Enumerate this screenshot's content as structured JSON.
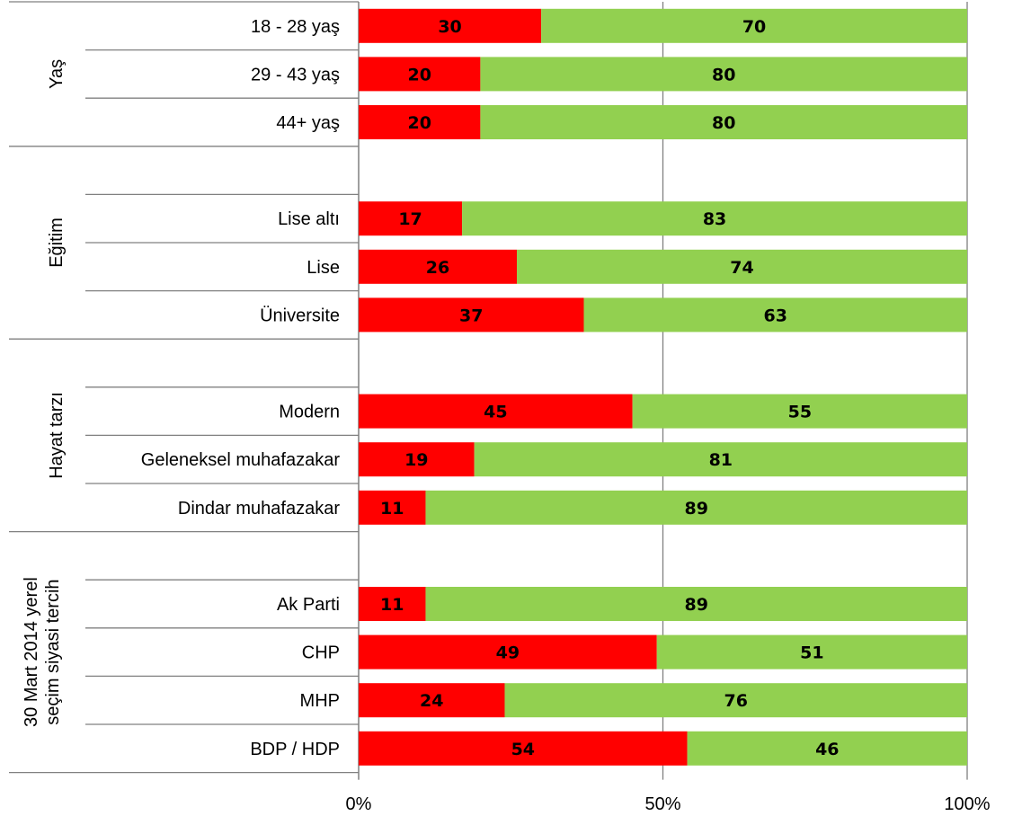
{
  "chart_data": {
    "type": "bar",
    "orientation": "horizontal",
    "stacked": true,
    "xlim": [
      0,
      100
    ],
    "ticks": [
      {
        "value": 0,
        "label": "0%"
      },
      {
        "value": 50,
        "label": "50%"
      },
      {
        "value": 100,
        "label": "100%"
      }
    ],
    "grid": true,
    "colors": {
      "series1": "#ff0000",
      "series2": "#92d050",
      "axis": "#808080",
      "grid": "#808080"
    },
    "groups": [
      {
        "label": "Yaş",
        "blank_slots": 0,
        "categories": [
          {
            "label": "18 - 28 yaş",
            "values": [
              30,
              70
            ]
          },
          {
            "label": "29 - 43 yaş",
            "values": [
              20,
              80
            ]
          },
          {
            "label": "44+ yaş",
            "values": [
              20,
              80
            ]
          }
        ]
      },
      {
        "label": "Eğitim",
        "blank_slots": 1,
        "categories": [
          {
            "label": "Lise altı",
            "values": [
              17,
              83
            ]
          },
          {
            "label": "Lise",
            "values": [
              26,
              74
            ]
          },
          {
            "label": "Üniversite",
            "values": [
              37,
              63
            ]
          }
        ]
      },
      {
        "label": "Hayat tarzı",
        "blank_slots": 1,
        "categories": [
          {
            "label": "Modern",
            "values": [
              45,
              55
            ]
          },
          {
            "label": "Geleneksel muhafazakar",
            "values": [
              19,
              81
            ]
          },
          {
            "label": "Dindar muhafazakar",
            "values": [
              11,
              89
            ]
          }
        ]
      },
      {
        "label_lines": [
          "30 Mart 2014 yerel",
          "seçim siyasi tercih"
        ],
        "blank_slots": 1,
        "categories": [
          {
            "label": "Ak Parti",
            "values": [
              11,
              89
            ]
          },
          {
            "label": "CHP",
            "values": [
              49,
              51
            ]
          },
          {
            "label": "MHP",
            "values": [
              24,
              76
            ]
          },
          {
            "label": "BDP / HDP",
            "values": [
              54,
              46
            ]
          }
        ]
      }
    ]
  }
}
